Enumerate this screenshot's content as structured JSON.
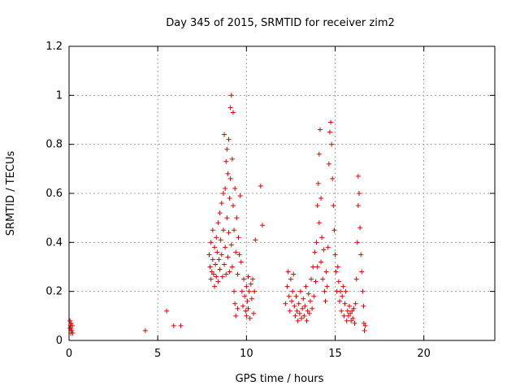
{
  "chart_data": {
    "type": "scatter",
    "title": "Day 345 of 2015, SRMTID for receiver zim2",
    "xlabel": "GPS time / hours",
    "ylabel": "SRMTID / TECUs",
    "xlim": [
      0,
      24
    ],
    "ylim": [
      0,
      1.2
    ],
    "x_ticks": [
      0,
      5,
      10,
      15,
      20
    ],
    "y_ticks": [
      0,
      0.2,
      0.4,
      0.6,
      0.8,
      1,
      1.2
    ],
    "x_tick_labels": [
      "0",
      "5",
      "10",
      "15",
      "20"
    ],
    "y_tick_labels": [
      "0",
      "0.2",
      "0.4",
      "0.6",
      "0.8",
      "1",
      "1.2"
    ],
    "grid": true,
    "marker": "+",
    "colors": {
      "series": "#e00000",
      "grid": "#a0a0a0",
      "axis": "#000000"
    },
    "series": [
      {
        "points": [
          [
            0.05,
            0.08
          ],
          [
            0.08,
            0.06
          ],
          [
            0.1,
            0.05
          ],
          [
            0.12,
            0.07
          ],
          [
            0.15,
            0.04
          ],
          [
            0.18,
            0.06
          ],
          [
            0.2,
            0.03
          ],
          [
            0.1,
            0.03
          ],
          [
            0.05,
            0.05
          ],
          [
            4.3,
            0.04
          ],
          [
            5.5,
            0.12
          ],
          [
            5.9,
            0.06
          ],
          [
            6.3,
            0.06
          ],
          [
            7.9,
            0.35
          ],
          [
            7.95,
            0.3
          ],
          [
            8.0,
            0.25
          ],
          [
            8.0,
            0.4
          ],
          [
            8.05,
            0.28
          ],
          [
            8.1,
            0.33
          ],
          [
            8.1,
            0.45
          ],
          [
            8.15,
            0.27
          ],
          [
            8.2,
            0.38
          ],
          [
            8.2,
            0.22
          ],
          [
            8.25,
            0.31
          ],
          [
            8.3,
            0.42
          ],
          [
            8.3,
            0.26
          ],
          [
            8.35,
            0.36
          ],
          [
            8.4,
            0.48
          ],
          [
            8.4,
            0.24
          ],
          [
            8.45,
            0.33
          ],
          [
            8.5,
            0.52
          ],
          [
            8.5,
            0.29
          ],
          [
            8.55,
            0.41
          ],
          [
            8.6,
            0.56
          ],
          [
            8.6,
            0.35
          ],
          [
            8.65,
            0.26
          ],
          [
            8.7,
            0.45
          ],
          [
            8.7,
            0.6
          ],
          [
            8.75,
            0.31
          ],
          [
            8.75,
            0.84
          ],
          [
            8.8,
            0.38
          ],
          [
            8.8,
            0.62
          ],
          [
            8.85,
            0.73
          ],
          [
            8.85,
            0.27
          ],
          [
            8.9,
            0.5
          ],
          [
            8.9,
            0.78
          ],
          [
            8.95,
            0.34
          ],
          [
            8.95,
            0.68
          ],
          [
            9.0,
            0.44
          ],
          [
            9.0,
            0.82
          ],
          [
            9.05,
            0.58
          ],
          [
            9.05,
            0.28
          ],
          [
            9.1,
            0.95
          ],
          [
            9.1,
            0.66
          ],
          [
            9.15,
            0.39
          ],
          [
            9.15,
            1.0
          ],
          [
            9.2,
            0.74
          ],
          [
            9.2,
            0.3
          ],
          [
            9.25,
            0.55
          ],
          [
            9.25,
            0.93
          ],
          [
            9.3,
            0.45
          ],
          [
            9.3,
            0.2
          ],
          [
            9.35,
            0.15
          ],
          [
            9.35,
            0.62
          ],
          [
            9.4,
            0.36
          ],
          [
            9.4,
            0.1
          ],
          [
            9.45,
            0.5
          ],
          [
            9.5,
            0.27
          ],
          [
            9.5,
            0.13
          ],
          [
            9.55,
            0.42
          ],
          [
            9.6,
            0.35
          ],
          [
            9.65,
            0.59
          ],
          [
            9.7,
            0.32
          ],
          [
            9.75,
            0.2
          ],
          [
            9.8,
            0.14
          ],
          [
            9.85,
            0.25
          ],
          [
            9.9,
            0.18
          ],
          [
            9.95,
            0.12
          ],
          [
            10.0,
            0.22
          ],
          [
            10.0,
            0.1
          ],
          [
            10.05,
            0.16
          ],
          [
            10.1,
            0.26
          ],
          [
            10.1,
            0.13
          ],
          [
            10.15,
            0.2
          ],
          [
            10.2,
            0.09
          ],
          [
            10.25,
            0.23
          ],
          [
            10.3,
            0.17
          ],
          [
            10.35,
            0.25
          ],
          [
            10.4,
            0.11
          ],
          [
            10.45,
            0.2
          ],
          [
            10.5,
            0.41
          ],
          [
            10.8,
            0.63
          ],
          [
            10.9,
            0.47
          ],
          [
            12.2,
            0.15
          ],
          [
            12.3,
            0.22
          ],
          [
            12.35,
            0.28
          ],
          [
            12.4,
            0.18
          ],
          [
            12.45,
            0.12
          ],
          [
            12.5,
            0.25
          ],
          [
            12.55,
            0.16
          ],
          [
            12.6,
            0.2
          ],
          [
            12.65,
            0.27
          ],
          [
            12.7,
            0.14
          ],
          [
            12.75,
            0.1
          ],
          [
            12.8,
            0.18
          ],
          [
            12.85,
            0.12
          ],
          [
            12.9,
            0.08
          ],
          [
            12.95,
            0.15
          ],
          [
            13.0,
            0.11
          ],
          [
            13.05,
            0.2
          ],
          [
            13.1,
            0.09
          ],
          [
            13.15,
            0.13
          ],
          [
            13.2,
            0.17
          ],
          [
            13.25,
            0.1
          ],
          [
            13.3,
            0.14
          ],
          [
            13.35,
            0.22
          ],
          [
            13.4,
            0.08
          ],
          [
            13.45,
            0.12
          ],
          [
            13.5,
            0.19
          ],
          [
            13.55,
            0.11
          ],
          [
            13.6,
            0.16
          ],
          [
            13.65,
            0.25
          ],
          [
            13.7,
            0.13
          ],
          [
            13.75,
            0.3
          ],
          [
            13.8,
            0.18
          ],
          [
            13.85,
            0.36
          ],
          [
            13.9,
            0.24
          ],
          [
            13.95,
            0.4
          ],
          [
            14.0,
            0.3
          ],
          [
            14.0,
            0.55
          ],
          [
            14.05,
            0.64
          ],
          [
            14.1,
            0.76
          ],
          [
            14.1,
            0.48
          ],
          [
            14.15,
            0.86
          ],
          [
            14.2,
            0.58
          ],
          [
            14.2,
            0.32
          ],
          [
            14.25,
            0.42
          ],
          [
            14.3,
            0.25
          ],
          [
            14.35,
            0.37
          ],
          [
            14.4,
            0.2
          ],
          [
            14.45,
            0.16
          ],
          [
            14.5,
            0.28
          ],
          [
            14.55,
            0.22
          ],
          [
            14.6,
            0.38
          ],
          [
            14.65,
            0.72
          ],
          [
            14.7,
            0.85
          ],
          [
            14.75,
            0.89
          ],
          [
            14.8,
            0.8
          ],
          [
            14.85,
            0.66
          ],
          [
            14.9,
            0.55
          ],
          [
            14.95,
            0.45
          ],
          [
            15.0,
            0.35
          ],
          [
            15.05,
            0.28
          ],
          [
            15.1,
            0.2
          ],
          [
            15.15,
            0.3
          ],
          [
            15.2,
            0.24
          ],
          [
            15.25,
            0.16
          ],
          [
            15.3,
            0.2
          ],
          [
            15.35,
            0.12
          ],
          [
            15.4,
            0.18
          ],
          [
            15.45,
            0.22
          ],
          [
            15.5,
            0.1
          ],
          [
            15.55,
            0.15
          ],
          [
            15.6,
            0.2
          ],
          [
            15.65,
            0.08
          ],
          [
            15.7,
            0.12
          ],
          [
            15.75,
            0.1
          ],
          [
            15.8,
            0.14
          ],
          [
            15.85,
            0.11
          ],
          [
            15.9,
            0.08
          ],
          [
            15.95,
            0.12
          ],
          [
            16.0,
            0.09
          ],
          [
            16.05,
            0.13
          ],
          [
            16.1,
            0.07
          ],
          [
            16.15,
            0.15
          ],
          [
            16.2,
            0.25
          ],
          [
            16.25,
            0.4
          ],
          [
            16.3,
            0.55
          ],
          [
            16.3,
            0.67
          ],
          [
            16.35,
            0.6
          ],
          [
            16.4,
            0.46
          ],
          [
            16.45,
            0.35
          ],
          [
            16.5,
            0.28
          ],
          [
            16.55,
            0.2
          ],
          [
            16.6,
            0.14
          ],
          [
            16.62,
            0.07
          ],
          [
            16.65,
            0.04
          ],
          [
            16.7,
            0.06
          ]
        ]
      }
    ]
  }
}
